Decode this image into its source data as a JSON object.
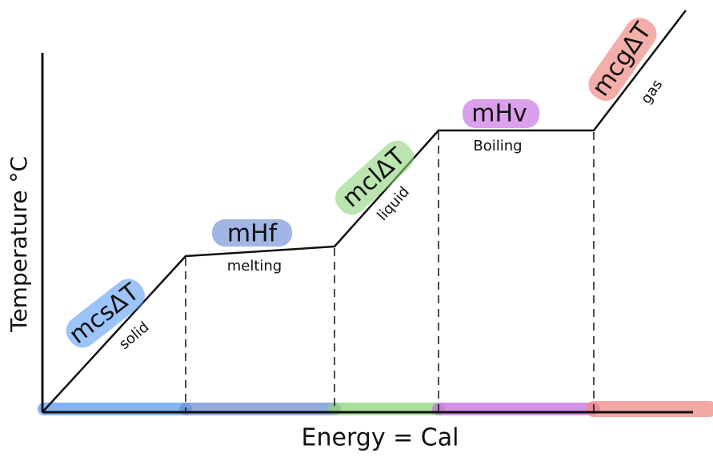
{
  "axes": {
    "y_label": "Temperature °C",
    "x_label": "Energy = Cal"
  },
  "segments": [
    {
      "formula": "mcsΔT",
      "phase": "solid",
      "color": "#5b9cf5"
    },
    {
      "formula": "mHf",
      "phase": "melting",
      "color": "#6f8fd6"
    },
    {
      "formula": "mclΔT",
      "phase": "liquid",
      "color": "#8ed47a"
    },
    {
      "formula": "mHv",
      "phase": "Boiling",
      "color": "#c86de0"
    },
    {
      "formula": "mcgΔT",
      "phase": "gas",
      "color": "#f08b86"
    }
  ]
}
